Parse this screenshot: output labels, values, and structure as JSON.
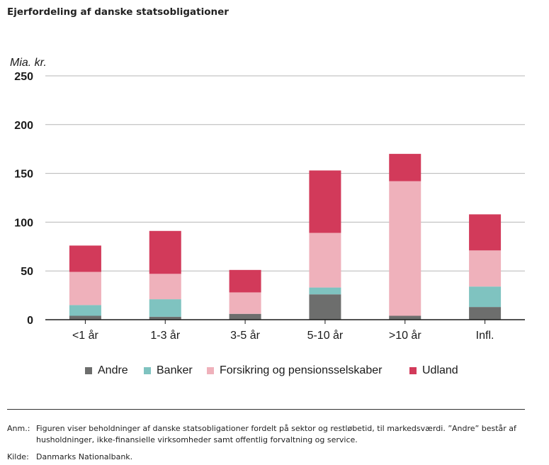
{
  "title": "Ejerfordeling af danske statsobligationer",
  "chart_data": {
    "type": "bar",
    "stacked": true,
    "unit_label": "Mia. kr.",
    "categories": [
      "<1 år",
      "1-3 år",
      "3-5 år",
      "5-10 år",
      ">10 år",
      "Infl."
    ],
    "series": [
      {
        "name": "Andre",
        "color": "#6d6e6d",
        "values": [
          4,
          3,
          6,
          26,
          4,
          13
        ]
      },
      {
        "name": "Banker",
        "color": "#7fc3c0",
        "values": [
          11,
          18,
          0,
          7,
          0,
          21
        ]
      },
      {
        "name": "Forsikring og pensionsselskaber",
        "color": "#efb1bb",
        "values": [
          34,
          26,
          22,
          56,
          138,
          37
        ]
      },
      {
        "name": "Udland",
        "color": "#d23a5a",
        "values": [
          27,
          44,
          23,
          64,
          28,
          37
        ]
      }
    ],
    "ylim": [
      0,
      250
    ],
    "yticks": [
      0,
      50,
      100,
      150,
      200,
      250
    ],
    "grid": true,
    "legend_position": "bottom"
  },
  "notes": {
    "anm_key": "Anm.:",
    "anm_text": "Figuren viser beholdninger af danske statsobligationer fordelt på sektor og restløbetid, til markedsværdi. ”Andre” består af husholdninger, ikke-finansielle virksomheder samt offentlig forvaltning og service.",
    "kilde_key": "Kilde:",
    "kilde_text": "Danmarks Nationalbank."
  }
}
